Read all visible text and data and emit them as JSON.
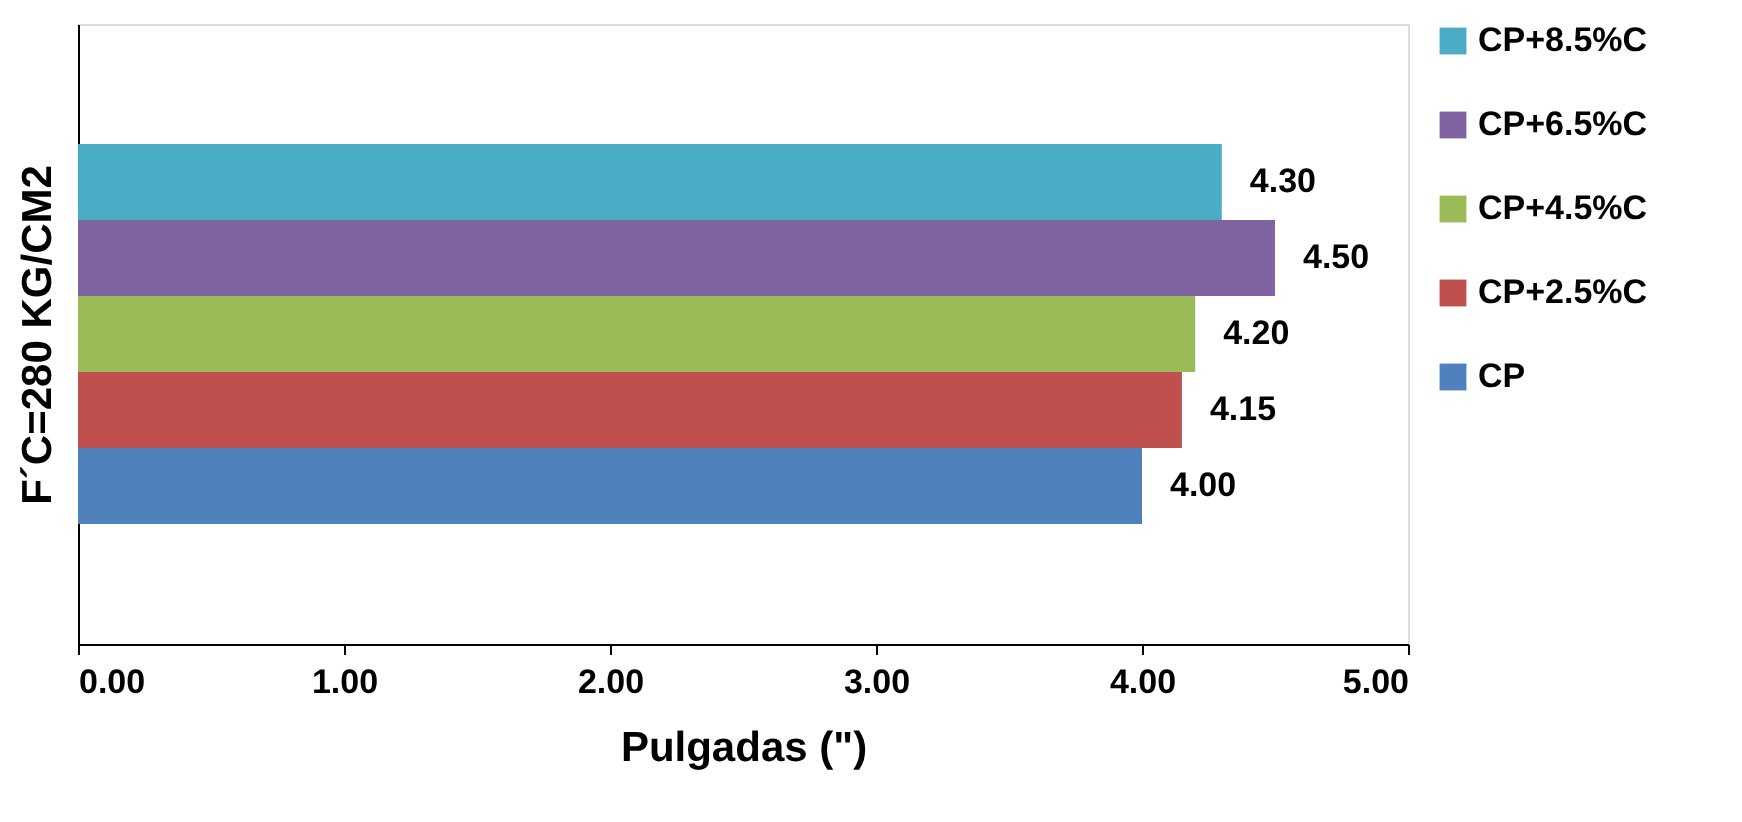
{
  "chart_data": {
    "type": "bar",
    "orientation": "horizontal",
    "categories": [
      null
    ],
    "xlabel": "Pulgadas (\")",
    "ylabel": "F´C=280 KG/CM2",
    "xlim": [
      0,
      5
    ],
    "xticks": [
      {
        "value": 0,
        "label": "0.00"
      },
      {
        "value": 1,
        "label": "1.00"
      },
      {
        "value": 2,
        "label": "2.00"
      },
      {
        "value": 3,
        "label": "3.00"
      },
      {
        "value": 4,
        "label": "4.00"
      },
      {
        "value": 5,
        "label": "5.00"
      }
    ],
    "tick_labels": "x",
    "legend": "right",
    "series": [
      {
        "name": "CP+8.5%C",
        "color": "#4bacc6",
        "values": [
          4.3
        ],
        "value_labels": [
          "4.30"
        ]
      },
      {
        "name": "CP+6.5%C",
        "color": "#8064a2",
        "values": [
          4.5
        ],
        "value_labels": [
          "4.50"
        ]
      },
      {
        "name": "CP+4.5%C",
        "color": "#9bbb59",
        "values": [
          4.2
        ],
        "value_labels": [
          "4.20"
        ]
      },
      {
        "name": "CP+2.5%C",
        "color": "#c0504d",
        "values": [
          4.15
        ],
        "value_labels": [
          "4.15"
        ]
      },
      {
        "name": "CP",
        "color": "#4f81bd",
        "values": [
          4.0
        ],
        "value_labels": [
          "4.00"
        ]
      }
    ]
  }
}
